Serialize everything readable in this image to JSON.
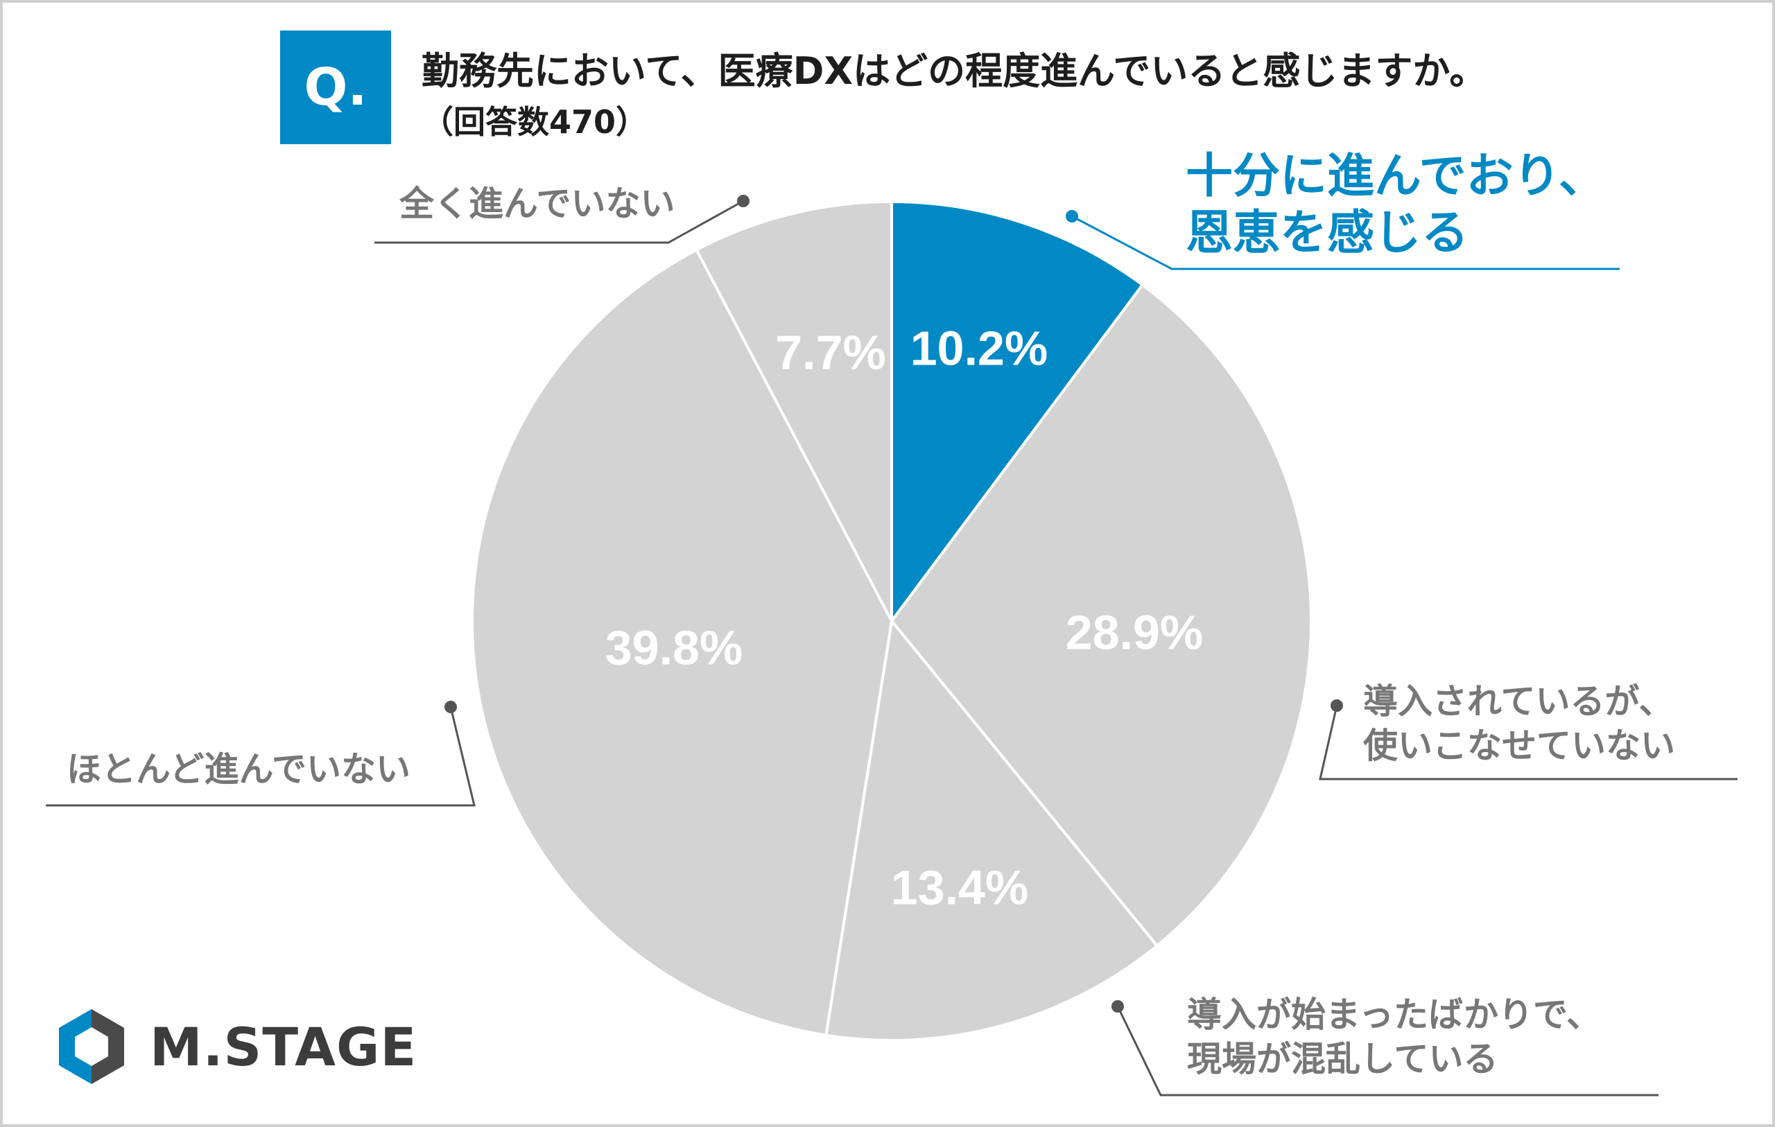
{
  "question": {
    "badge": "Q.",
    "text": "勤務先において、医療DXはどの程度進んでいると感じますか。",
    "count": "（回答数470）"
  },
  "chart_data": {
    "type": "pie",
    "title": "",
    "slices": [
      {
        "label_lines": [
          "十分に進んでおり、",
          "恩恵を感じる"
        ],
        "value": 10.2,
        "value_label": "10.2%",
        "color": "#0089c4",
        "highlight": true
      },
      {
        "label_lines": [
          "導入されているが、",
          "使いこなせていない"
        ],
        "value": 28.9,
        "value_label": "28.9%",
        "color": "#d3d3d3",
        "highlight": false
      },
      {
        "label_lines": [
          "導入が始まったばかりで、",
          "現場が混乱している"
        ],
        "value": 13.4,
        "value_label": "13.4%",
        "color": "#d3d3d3",
        "highlight": false
      },
      {
        "label_lines": [
          "ほとんど進んでいない"
        ],
        "value": 39.8,
        "value_label": "39.8%",
        "color": "#d3d3d3",
        "highlight": false
      },
      {
        "label_lines": [
          "全く進んでいない"
        ],
        "value": 7.7,
        "value_label": "7.7%",
        "color": "#d3d3d3",
        "highlight": false
      }
    ],
    "start_angle": "12 o'clock",
    "direction": "clockwise",
    "legend": "none"
  },
  "colors": {
    "accent": "#0089c4",
    "slice_gray": "#d3d3d3",
    "label_gray": "#777777",
    "leader_line": "#555555"
  },
  "logo": {
    "text": "M.STAGE",
    "icon": "hexagon-logo-icon"
  }
}
